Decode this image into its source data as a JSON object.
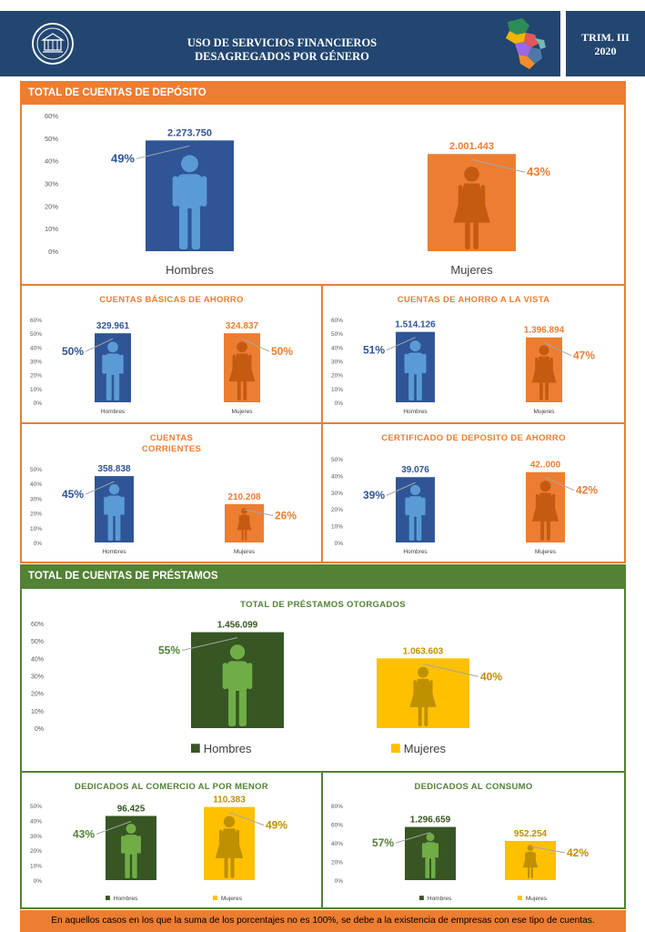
{
  "header": {
    "title_line1": "USO DE SERVICIOS FINANCIEROS",
    "title_line2": "DESAGREGADOS POR GÉNERO",
    "period_line1": "TRIM. III",
    "period_line2": "2020"
  },
  "colors": {
    "navy": "#224670",
    "orange": "#ED7D31",
    "blue": "#2F5597",
    "green_bar": "#375623",
    "green_frame": "#538135",
    "yellow": "#FFC000",
    "figure_blue": "#5B9BD5",
    "figure_orange": "#C55A11",
    "figure_green": "#70AD47",
    "figure_yellow": "#BF9000"
  },
  "icons": [
    "seal-icon",
    "paraguay-map-icon",
    "man-icon",
    "woman-icon"
  ],
  "sections": {
    "deposits": "TOTAL DE CUENTAS DE DEPÓSITO",
    "loans": "TOTAL DE CUENTAS DE PRÉSTAMOS"
  },
  "panels": {
    "basic_savings": "CUENTAS BÁSICAS DE AHORRO",
    "demand_savings": "CUENTAS DE AHORRO A LA VISTA",
    "current_line1": "CUENTAS",
    "current_line2": "CORRIENTES",
    "savings_certificate": "CERTIFICADO DE DEPOSITO DE AHORRO",
    "total_loans": "TOTAL DE PRÉSTAMOS OTORGADOS",
    "retail": "DEDICADOS AL COMERCIO AL POR MENOR",
    "consumer": "DEDICADOS AL CONSUMO"
  },
  "footnote": "En aquellos casos en los que la suma de los porcentajes no es 100%, se debe a la existencia de empresas con ese tipo de cuentas.",
  "chart_data": [
    {
      "id": "total_deposits",
      "type": "bar",
      "categories": [
        "Hombres",
        "Mujeres"
      ],
      "values": [
        49,
        43
      ],
      "data_labels": [
        "2.273.750",
        "2.001.443"
      ],
      "percent_labels": [
        "49%",
        "43%"
      ],
      "yticks": [
        "0%",
        "10%",
        "20%",
        "30%",
        "40%",
        "50%",
        "60%"
      ],
      "ylim": [
        0,
        60
      ]
    },
    {
      "id": "basic_savings",
      "type": "bar",
      "categories": [
        "Hombres",
        "Mujeres"
      ],
      "values": [
        50,
        50
      ],
      "data_labels": [
        "329.961",
        "324.837"
      ],
      "percent_labels": [
        "50%",
        "50%"
      ],
      "yticks": [
        "0%",
        "10%",
        "20%",
        "30%",
        "40%",
        "50%",
        "60%"
      ],
      "ylim": [
        0,
        60
      ]
    },
    {
      "id": "demand_savings",
      "type": "bar",
      "categories": [
        "Hombres",
        "Mujeres"
      ],
      "values": [
        51,
        47
      ],
      "data_labels": [
        "1.514.126",
        "1.396.894"
      ],
      "percent_labels": [
        "51%",
        "47%"
      ],
      "yticks": [
        "0%",
        "10%",
        "20%",
        "30%",
        "40%",
        "50%",
        "60%"
      ],
      "ylim": [
        0,
        60
      ]
    },
    {
      "id": "current_accounts",
      "type": "bar",
      "categories": [
        "Hombres",
        "Mujeres"
      ],
      "values": [
        45,
        26
      ],
      "data_labels": [
        "358.838",
        "210.208"
      ],
      "percent_labels": [
        "45%",
        "26%"
      ],
      "yticks": [
        "0%",
        "10%",
        "20%",
        "30%",
        "40%",
        "50%"
      ],
      "ylim": [
        0,
        50
      ]
    },
    {
      "id": "savings_certificate",
      "type": "bar",
      "categories": [
        "Hombres",
        "Mujeres"
      ],
      "values": [
        39,
        42
      ],
      "data_labels": [
        "39.076",
        "42..000"
      ],
      "percent_labels": [
        "39%",
        "42%"
      ],
      "yticks": [
        "0%",
        "10%",
        "20%",
        "30%",
        "40%",
        "50%"
      ],
      "ylim": [
        0,
        50
      ]
    },
    {
      "id": "total_loans",
      "type": "bar",
      "categories": [
        "Hombres",
        "Mujeres"
      ],
      "values": [
        55,
        40
      ],
      "data_labels": [
        "1.456.099",
        "1.063.603"
      ],
      "percent_labels": [
        "55%",
        "40%"
      ],
      "yticks": [
        "0%",
        "10%",
        "20%",
        "30%",
        "40%",
        "50%",
        "60%"
      ],
      "ylim": [
        0,
        60
      ],
      "legend": [
        "Hombres",
        "Mujeres"
      ]
    },
    {
      "id": "retail",
      "type": "bar",
      "categories": [
        "Hombres",
        "Mujeres"
      ],
      "values": [
        43,
        49
      ],
      "data_labels": [
        "96.425",
        "110.383"
      ],
      "percent_labels": [
        "43%",
        "49%"
      ],
      "yticks": [
        "0%",
        "10%",
        "20%",
        "30%",
        "40%",
        "50%"
      ],
      "ylim": [
        0,
        50
      ],
      "legend": [
        "Hombres",
        "Mujeres"
      ]
    },
    {
      "id": "consumer",
      "type": "bar",
      "categories": [
        "Hombres",
        "Mujeres"
      ],
      "values": [
        57,
        42
      ],
      "data_labels": [
        "1.296.659",
        "952.254"
      ],
      "percent_labels": [
        "57%",
        "42%"
      ],
      "yticks": [
        "0%",
        "20%",
        "40%",
        "60%",
        "80%"
      ],
      "ylim": [
        0,
        80
      ],
      "legend": [
        "Hombres",
        "Mujeres"
      ]
    }
  ]
}
